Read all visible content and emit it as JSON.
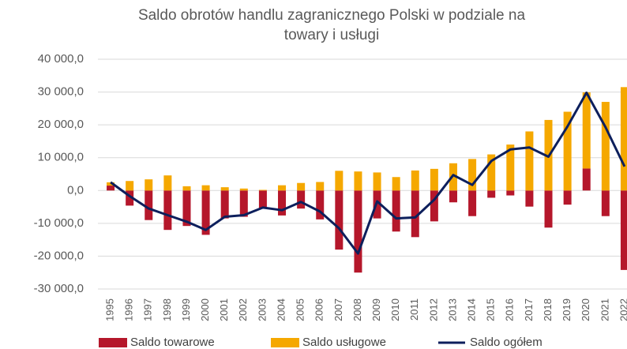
{
  "chart_data": {
    "type": "bar",
    "stacked": true,
    "title": [
      "Saldo obrotów handlu zagranicznego Polski w podziale na",
      "towary i usługi"
    ],
    "categories": [
      "1995",
      "1996",
      "1997",
      "1998",
      "1999",
      "2000",
      "2001",
      "2002",
      "2003",
      "2004",
      "2005",
      "2006",
      "2007",
      "2008",
      "2009",
      "2010",
      "2011",
      "2012",
      "2013",
      "2014",
      "2015",
      "2016",
      "2017",
      "2018",
      "2019",
      "2020",
      "2021",
      "2022"
    ],
    "series": [
      {
        "name": "Saldo towarowe",
        "type": "bar",
        "color": "#b5172b",
        "values": [
          1500,
          -4600,
          -9000,
          -12000,
          -10800,
          -13500,
          -8500,
          -8000,
          -5500,
          -7600,
          -5500,
          -8800,
          -18000,
          -25000,
          -8500,
          -12500,
          -14200,
          -9400,
          -3600,
          -7800,
          -2200,
          -1500,
          -4900,
          -11300,
          -4300,
          6700,
          -7800,
          -24200
        ]
      },
      {
        "name": "Saldo usługowe",
        "type": "bar",
        "color": "#f5a800",
        "values": [
          1000,
          2900,
          3400,
          4600,
          1300,
          1600,
          1000,
          600,
          200,
          1600,
          2300,
          2600,
          6000,
          5800,
          5500,
          4100,
          6100,
          6600,
          8300,
          9600,
          11000,
          14000,
          18000,
          21500,
          24000,
          23200,
          27000,
          31500
        ]
      },
      {
        "name": "Saldo ogółem",
        "type": "line",
        "color": "#0d1f5c",
        "values": [
          2500,
          -1700,
          -5500,
          -7500,
          -9500,
          -12000,
          -8000,
          -7500,
          -5200,
          -6000,
          -3500,
          -6400,
          -11500,
          -19200,
          -3300,
          -8500,
          -8200,
          -2800,
          4700,
          1700,
          9000,
          12500,
          13100,
          10300,
          19500,
          29800,
          19300,
          7300
        ]
      }
    ],
    "ylim": [
      -30000,
      40000
    ],
    "yticks": [
      {
        "value": -30000,
        "label": "-30 000,0"
      },
      {
        "value": -20000,
        "label": "-20 000,0"
      },
      {
        "value": -10000,
        "label": "-10 000,0"
      },
      {
        "value": 0,
        "label": "0,0"
      },
      {
        "value": 10000,
        "label": "10 000,0"
      },
      {
        "value": 20000,
        "label": "20 000,0"
      },
      {
        "value": 30000,
        "label": "30 000,0"
      },
      {
        "value": 40000,
        "label": "40 000,0"
      }
    ],
    "grid": true,
    "legend": "bottom"
  }
}
